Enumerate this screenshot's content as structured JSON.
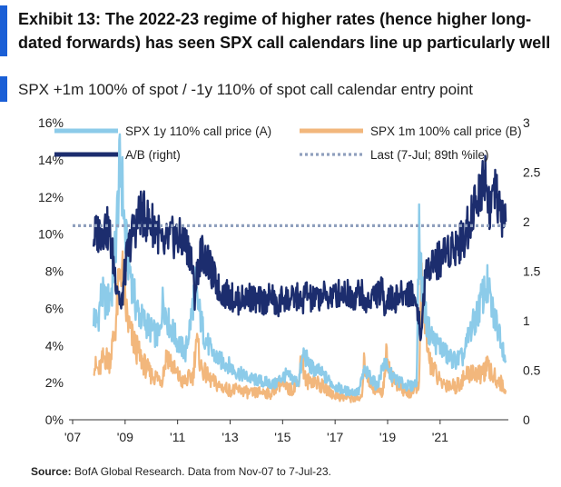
{
  "header": {
    "title": "Exhibit 13: The 2022-23  regime of higher rates (hence higher long-dated forwards)  has seen SPX call calendars line up particularly well",
    "subtitle": "SPX +1m 100% of spot / -1y 110% of spot call calendar entry point"
  },
  "footer": {
    "source_label": "Source:",
    "source_text": "BofA Global Research. Data from Nov-07 to 7-Jul-23."
  },
  "colors": {
    "series_a": "#8ccbe9",
    "series_b": "#f2b77c",
    "ratio": "#1c2d6e",
    "last": "#8f9fbd",
    "axis": "#333333"
  },
  "chart_data": {
    "type": "line",
    "title": "SPX +1m 100% of spot / -1y 110% of spot call calendar entry point",
    "xlabel": "",
    "ylabel_left": "",
    "ylabel_right": "",
    "xlim": [
      2007.0,
      2023.6
    ],
    "ylim_left": [
      0,
      16
    ],
    "ylim_right": [
      0,
      3
    ],
    "left_ticks": [
      "0%",
      "2%",
      "4%",
      "6%",
      "8%",
      "10%",
      "12%",
      "14%",
      "16%"
    ],
    "right_ticks": [
      "0",
      "0.5",
      "1",
      "1.5",
      "2",
      "2.5",
      "3"
    ],
    "x_ticks": [
      {
        "year": 2007,
        "label": "'07"
      },
      {
        "year": 2009,
        "label": "'09"
      },
      {
        "year": 2011,
        "label": "'11"
      },
      {
        "year": 2013,
        "label": "'13"
      },
      {
        "year": 2015,
        "label": "'15"
      },
      {
        "year": 2017,
        "label": "'17"
      },
      {
        "year": 2019,
        "label": "'19"
      },
      {
        "year": 2021,
        "label": "'21"
      }
    ],
    "legend": [
      {
        "name": "SPX 1y 110% call price (A)",
        "key": "a"
      },
      {
        "name": "SPX 1m 100% call price (B)",
        "key": "b"
      },
      {
        "name": "A/B (right)",
        "key": "ratio"
      },
      {
        "name": "Last (7-Jul; 89th %ile)",
        "key": "last"
      }
    ],
    "series": [
      {
        "name": "SPX 1y 110% call price (A)",
        "axis": "left",
        "x": [
          2007.8,
          2007.95,
          2008.1,
          2008.3,
          2008.5,
          2008.65,
          2008.8,
          2008.9,
          2009.0,
          2009.2,
          2009.4,
          2009.6,
          2009.8,
          2010.0,
          2010.3,
          2010.45,
          2010.6,
          2010.8,
          2011.0,
          2011.3,
          2011.55,
          2011.65,
          2011.8,
          2012.0,
          2012.3,
          2012.6,
          2012.9,
          2013.2,
          2013.5,
          2013.8,
          2014.1,
          2014.4,
          2014.7,
          2014.9,
          2015.1,
          2015.4,
          2015.6,
          2015.8,
          2016.0,
          2016.1,
          2016.4,
          2016.7,
          2017.0,
          2017.3,
          2017.6,
          2017.9,
          2018.1,
          2018.3,
          2018.6,
          2018.9,
          2019.0,
          2019.3,
          2019.6,
          2019.9,
          2020.1,
          2020.2,
          2020.3,
          2020.5,
          2020.8,
          2021.0,
          2021.3,
          2021.6,
          2021.9,
          2022.1,
          2022.4,
          2022.6,
          2022.8,
          2023.0,
          2023.3,
          2023.5
        ],
        "y": [
          5.6,
          5.2,
          6.8,
          6.2,
          7.0,
          9.8,
          13.6,
          12.5,
          9.8,
          8.0,
          6.2,
          5.5,
          5.2,
          4.8,
          4.4,
          6.6,
          5.4,
          4.8,
          4.2,
          3.6,
          5.8,
          7.2,
          6.0,
          4.6,
          3.6,
          3.2,
          3.0,
          2.6,
          2.4,
          2.2,
          2.1,
          2.0,
          1.9,
          2.2,
          2.4,
          2.2,
          2.0,
          3.6,
          3.0,
          2.8,
          2.6,
          2.2,
          1.8,
          1.6,
          1.5,
          1.5,
          2.6,
          2.4,
          1.8,
          3.2,
          2.6,
          2.2,
          1.9,
          1.8,
          2.0,
          10.0,
          7.5,
          5.0,
          4.2,
          4.0,
          3.4,
          3.2,
          3.4,
          4.6,
          5.6,
          6.6,
          7.2,
          5.8,
          4.6,
          3.2
        ]
      },
      {
        "name": "SPX 1m 100% call price (B)",
        "axis": "left",
        "x": [
          2007.8,
          2008.0,
          2008.2,
          2008.4,
          2008.6,
          2008.75,
          2008.85,
          2009.0,
          2009.2,
          2009.5,
          2009.8,
          2010.0,
          2010.4,
          2010.6,
          2010.9,
          2011.2,
          2011.6,
          2011.7,
          2011.9,
          2012.2,
          2012.6,
          2013.0,
          2013.4,
          2013.8,
          2014.2,
          2014.6,
          2014.8,
          2015.0,
          2015.3,
          2015.6,
          2015.7,
          2015.9,
          2016.1,
          2016.5,
          2016.9,
          2017.3,
          2017.7,
          2018.0,
          2018.1,
          2018.4,
          2018.8,
          2018.95,
          2019.2,
          2019.6,
          2019.9,
          2020.2,
          2020.3,
          2020.5,
          2020.8,
          2021.0,
          2021.3,
          2021.6,
          2021.9,
          2022.2,
          2022.5,
          2022.8,
          2023.0,
          2023.3,
          2023.5
        ],
        "y": [
          3.0,
          2.6,
          3.4,
          3.2,
          4.6,
          7.0,
          8.6,
          6.2,
          4.6,
          3.6,
          2.8,
          2.4,
          2.2,
          3.6,
          2.6,
          2.0,
          2.4,
          4.4,
          2.8,
          2.2,
          1.8,
          1.6,
          1.6,
          1.4,
          1.5,
          1.4,
          2.0,
          1.8,
          1.6,
          2.0,
          3.4,
          2.0,
          2.2,
          1.8,
          1.4,
          1.2,
          1.2,
          1.1,
          3.0,
          1.8,
          1.4,
          3.4,
          2.2,
          1.5,
          1.4,
          2.0,
          7.8,
          3.6,
          2.6,
          2.0,
          1.9,
          1.8,
          2.2,
          2.6,
          2.4,
          2.8,
          2.4,
          2.0,
          1.6
        ]
      },
      {
        "name": "A/B (right)",
        "axis": "right",
        "x": [
          2007.8,
          2008.0,
          2008.2,
          2008.4,
          2008.6,
          2008.75,
          2008.85,
          2008.95,
          2009.1,
          2009.3,
          2009.6,
          2009.9,
          2010.2,
          2010.45,
          2010.6,
          2010.9,
          2011.2,
          2011.5,
          2011.65,
          2011.75,
          2011.9,
          2012.2,
          2012.6,
          2013.0,
          2013.3,
          2013.7,
          2014.0,
          2014.3,
          2014.6,
          2014.8,
          2015.0,
          2015.3,
          2015.6,
          2015.7,
          2015.9,
          2016.1,
          2016.5,
          2016.9,
          2017.3,
          2017.7,
          2018.0,
          2018.1,
          2018.4,
          2018.8,
          2018.9,
          2019.0,
          2019.2,
          2019.5,
          2019.8,
          2020.0,
          2020.2,
          2020.25,
          2020.4,
          2020.6,
          2020.9,
          2021.2,
          2021.5,
          2021.8,
          2022.0,
          2022.2,
          2022.4,
          2022.6,
          2022.7,
          2022.9,
          2023.1,
          2023.3,
          2023.5
        ],
        "y": [
          1.85,
          1.9,
          1.95,
          1.9,
          1.5,
          1.3,
          1.1,
          1.4,
          1.7,
          1.9,
          2.1,
          2.0,
          1.95,
          1.7,
          1.8,
          1.85,
          1.8,
          1.7,
          1.25,
          1.5,
          1.7,
          1.55,
          1.3,
          1.25,
          1.2,
          1.25,
          1.2,
          1.2,
          1.25,
          1.1,
          1.25,
          1.2,
          1.25,
          1.15,
          1.3,
          1.2,
          1.25,
          1.25,
          1.3,
          1.25,
          1.3,
          1.15,
          1.25,
          1.3,
          1.15,
          1.25,
          1.2,
          1.25,
          1.3,
          1.25,
          1.05,
          0.75,
          1.35,
          1.6,
          1.6,
          1.7,
          1.75,
          1.8,
          1.9,
          2.1,
          2.2,
          2.4,
          2.5,
          2.15,
          2.3,
          2.05,
          2.0
        ]
      }
    ],
    "reference_lines": [
      {
        "name": "Last (7-Jul; 89th %ile)",
        "axis": "right",
        "value": 1.96
      }
    ]
  }
}
